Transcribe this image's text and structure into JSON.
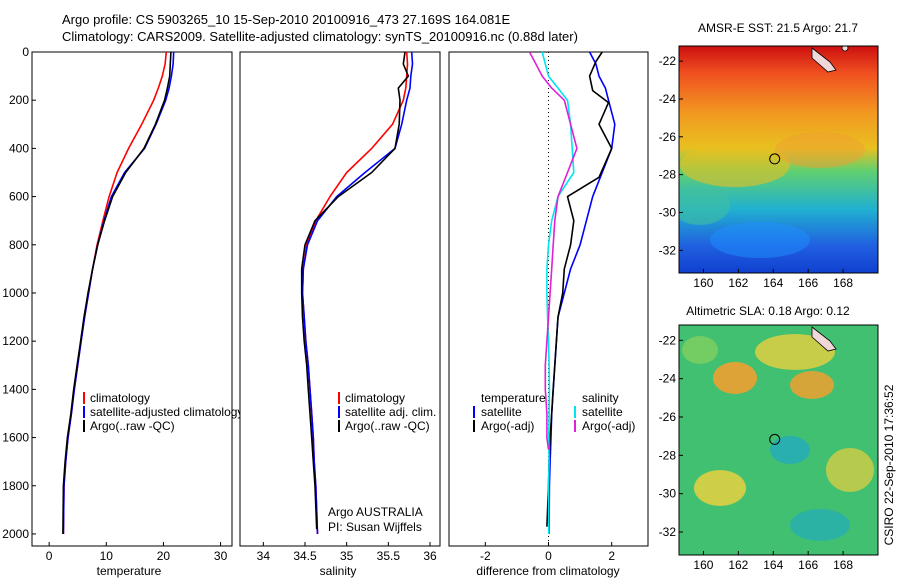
{
  "header": {
    "line1": "Argo profile: CS 5903265_10 15-Sep-2010 20100916_473 27.169S 164.081E",
    "line2": "Climatology: CARS2009. Satellite-adjusted climatology: synTS_20100916.nc (0.88d later)"
  },
  "side_label": "CSIRO 22-Sep-2010 17:36:52",
  "colors": {
    "red": "#ff0000",
    "blue": "#0000ff",
    "black": "#000000",
    "cyan": "#00e5ee",
    "magenta": "#e020d8"
  },
  "chart_data": [
    {
      "type": "line",
      "xlabel": "temperature",
      "xticks": [
        "0",
        "10",
        "20",
        "30"
      ],
      "xlim": [
        -3,
        32
      ],
      "ylim": [
        0,
        2050
      ],
      "yticks": [
        "0",
        "200",
        "400",
        "600",
        "800",
        "1000",
        "1200",
        "1400",
        "1600",
        "1800",
        "2000"
      ],
      "legend": [
        "climatology",
        "satellite-adjusted climatology",
        "Argo(..raw -QC)"
      ],
      "series": [
        {
          "name": "climatology",
          "color": "red",
          "x": [
            20.5,
            20.3,
            19.8,
            19.1,
            18.3,
            16.2,
            13.9,
            11.9,
            10.5,
            9.4,
            8.4,
            7.6,
            6.9,
            6.2,
            5.6,
            5.0,
            4.4,
            3.9,
            3.3,
            2.9,
            2.6,
            2.5
          ],
          "y": [
            0,
            50,
            100,
            150,
            200,
            300,
            400,
            500,
            600,
            700,
            800,
            900,
            1000,
            1100,
            1200,
            1300,
            1400,
            1500,
            1600,
            1700,
            1800,
            2000
          ]
        },
        {
          "name": "satellite-adjusted climatology",
          "color": "blue",
          "x": [
            21.8,
            21.7,
            21.4,
            21.0,
            20.4,
            18.7,
            16.7,
            13.2,
            10.9,
            9.6,
            8.5,
            7.6,
            6.9,
            6.2,
            5.6,
            5.0,
            4.4,
            3.9,
            3.3,
            2.9,
            2.6,
            2.5
          ],
          "y": [
            0,
            50,
            100,
            150,
            200,
            300,
            400,
            500,
            600,
            700,
            800,
            900,
            1000,
            1100,
            1200,
            1300,
            1400,
            1500,
            1600,
            1700,
            1800,
            2000
          ]
        },
        {
          "name": "Argo(..raw -QC)",
          "color": "black",
          "x": [
            21.3,
            21.2,
            21.1,
            20.7,
            20.2,
            18.6,
            16.6,
            13.4,
            11.1,
            9.7,
            8.5,
            7.6,
            6.8,
            6.1,
            5.5,
            4.9,
            4.3,
            3.8,
            3.2,
            2.8,
            2.5,
            2.4
          ],
          "y": [
            0,
            50,
            100,
            150,
            200,
            300,
            400,
            500,
            600,
            700,
            800,
            900,
            1000,
            1100,
            1200,
            1300,
            1400,
            1500,
            1600,
            1700,
            1800,
            2000
          ]
        }
      ]
    },
    {
      "type": "line",
      "xlabel": "salinity",
      "xticks": [
        "34",
        "34.5",
        "35",
        "35.5",
        "36"
      ],
      "xlim": [
        33.72,
        36.12
      ],
      "ylim": [
        0,
        2050
      ],
      "legend": [
        "climatology",
        "satellite adj. clim.",
        "Argo(..raw -QC)"
      ],
      "annotation": [
        "Argo AUSTRALIA",
        "PI: Susan Wijffels"
      ],
      "series": [
        {
          "name": "climatology",
          "color": "red",
          "x": [
            35.72,
            35.73,
            35.72,
            35.71,
            35.68,
            35.55,
            35.3,
            35.0,
            34.8,
            34.63,
            34.52,
            34.48,
            34.47,
            34.49,
            34.51,
            34.54,
            34.56,
            34.58,
            34.6,
            34.61,
            34.63,
            34.65
          ],
          "y": [
            0,
            50,
            100,
            150,
            200,
            300,
            400,
            500,
            600,
            700,
            800,
            900,
            1000,
            1100,
            1200,
            1300,
            1400,
            1500,
            1600,
            1700,
            1800,
            2000
          ]
        },
        {
          "name": "satellite adj. clim.",
          "color": "blue",
          "x": [
            35.78,
            35.79,
            35.77,
            35.76,
            35.72,
            35.66,
            35.58,
            35.22,
            34.88,
            34.65,
            34.53,
            34.48,
            34.47,
            34.49,
            34.51,
            34.54,
            34.56,
            34.58,
            34.6,
            34.61,
            34.63,
            34.65
          ],
          "y": [
            0,
            50,
            100,
            150,
            200,
            300,
            400,
            500,
            600,
            700,
            800,
            900,
            1000,
            1100,
            1200,
            1300,
            1400,
            1500,
            1600,
            1700,
            1800,
            2000
          ]
        },
        {
          "name": "Argo(..raw -QC)",
          "color": "black",
          "x": [
            35.7,
            35.68,
            35.74,
            35.62,
            35.64,
            35.63,
            35.58,
            35.3,
            34.9,
            34.62,
            34.5,
            34.46,
            34.46,
            34.47,
            34.49,
            34.52,
            34.54,
            34.56,
            34.58,
            34.6,
            34.62,
            34.64
          ],
          "y": [
            0,
            50,
            100,
            150,
            200,
            300,
            400,
            500,
            600,
            700,
            800,
            900,
            1000,
            1100,
            1200,
            1300,
            1400,
            1500,
            1600,
            1700,
            1800,
            1980
          ]
        }
      ]
    },
    {
      "type": "line",
      "xlabel": "difference from climatology",
      "xticks": [
        "-2",
        "0",
        "2"
      ],
      "xlim": [
        -3.15,
        3.15
      ],
      "ylim": [
        0,
        2050
      ],
      "legend_titles": [
        "temperature",
        "salinity"
      ],
      "legend": [
        "satellite",
        "Argo(-adj)",
        "satellite",
        "Argo(-adj)"
      ],
      "series": [
        {
          "name": "temperature satellite",
          "color": "blue",
          "x": [
            1.3,
            1.5,
            1.6,
            1.8,
            1.9,
            2.1,
            2.0,
            1.7,
            1.4,
            1.2,
            1.0,
            0.7,
            0.5,
            0.3,
            0.25,
            0.2,
            0.15,
            0.1,
            0.08,
            0.05,
            0.03,
            0.02
          ],
          "y": [
            0,
            50,
            100,
            150,
            200,
            300,
            400,
            500,
            600,
            700,
            800,
            900,
            1000,
            1100,
            1200,
            1300,
            1400,
            1500,
            1600,
            1700,
            1800,
            2000
          ]
        },
        {
          "name": "temperature Argo(-adj)",
          "color": "black",
          "x": [
            1.7,
            1.5,
            1.3,
            1.4,
            1.9,
            1.6,
            2.0,
            1.6,
            0.6,
            0.8,
            0.7,
            0.5,
            0.45,
            0.3,
            0.25,
            0.2,
            0.15,
            0.1,
            0.05,
            0.02,
            0.0,
            -0.05
          ],
          "y": [
            0,
            40,
            100,
            160,
            210,
            300,
            400,
            520,
            600,
            700,
            800,
            900,
            1000,
            1100,
            1200,
            1300,
            1400,
            1500,
            1600,
            1700,
            1800,
            1970
          ]
        },
        {
          "name": "salinity satellite",
          "color": "cyan",
          "x": [
            -0.2,
            -0.1,
            0.0,
            0.3,
            0.6,
            0.7,
            0.75,
            0.8,
            0.3,
            0.1,
            0.0,
            -0.05,
            -0.05,
            -0.03,
            0.0,
            0.02,
            0.03,
            0.02,
            0.01,
            0.02,
            0.0,
            0.01
          ],
          "y": [
            0,
            50,
            100,
            150,
            200,
            300,
            400,
            500,
            600,
            700,
            800,
            900,
            1000,
            1100,
            1200,
            1300,
            1400,
            1500,
            1600,
            1700,
            1800,
            2000
          ]
        },
        {
          "name": "salinity Argo(-adj)",
          "color": "magenta",
          "x": [
            -0.6,
            -0.4,
            -0.2,
            0.1,
            0.5,
            0.7,
            0.9,
            0.6,
            0.3,
            0.2,
            0.15,
            0.1,
            0.05,
            0.0,
            -0.05,
            -0.1,
            -0.1,
            -0.05,
            -0.05,
            0.0
          ],
          "y": [
            0,
            50,
            100,
            150,
            200,
            300,
            400,
            500,
            600,
            700,
            800,
            900,
            1000,
            1100,
            1200,
            1300,
            1400,
            1500,
            1600,
            1650
          ]
        }
      ]
    },
    {
      "type": "heatmap",
      "title": "AMSR-E SST: 21.5 Argo: 21.7",
      "xticks": [
        "160",
        "162",
        "164",
        "166",
        "168"
      ],
      "yticks": [
        "-22",
        "-24",
        "-26",
        "-28",
        "-30",
        "-32"
      ],
      "xlim": [
        158.6,
        170.0
      ],
      "ylim": [
        -33.2,
        -21.2
      ],
      "marker": {
        "lon": 164.081,
        "lat": -27.169
      }
    },
    {
      "type": "heatmap",
      "title": "Altimetric SLA: 0.18 Argo: 0.12",
      "xticks": [
        "160",
        "162",
        "164",
        "166",
        "168"
      ],
      "yticks": [
        "-22",
        "-24",
        "-26",
        "-28",
        "-30",
        "-32"
      ],
      "xlim": [
        158.6,
        170.0
      ],
      "ylim": [
        -33.2,
        -21.2
      ],
      "marker": {
        "lon": 164.081,
        "lat": -27.169
      }
    }
  ]
}
